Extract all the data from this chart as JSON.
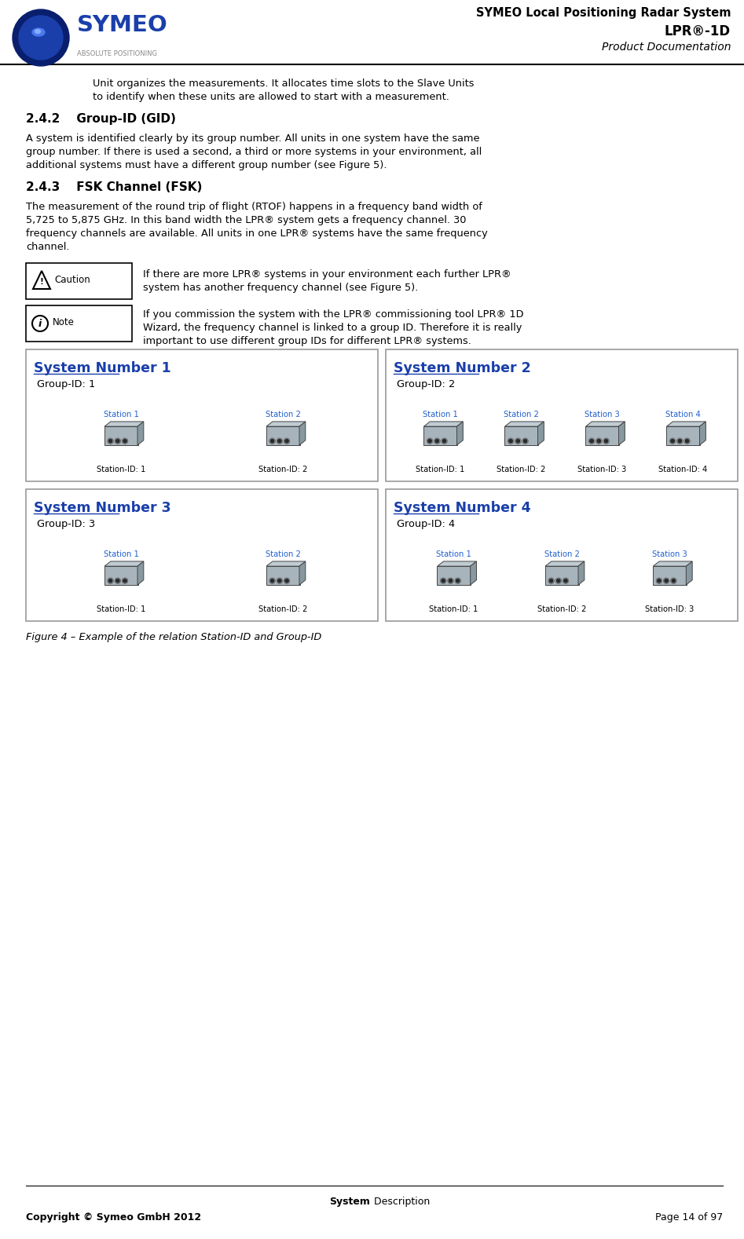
{
  "header_title_line1": "SYMEO Local Positioning Radar System",
  "header_title_line2": "LPR®-1D",
  "header_title_line3": "Product Documentation",
  "body_text_intro": "Unit organizes the measurements. It allocates time slots to the Slave Units\nto identify when these units are allowed to start with a measurement.",
  "section_242_title": "2.4.2    Group-ID (GID)",
  "section_242_text": "A system is identified clearly by its group number. All units in one system have the same\ngroup number. If there is used a second, a third or more systems in your environment, all\nadditional systems must have a different group number (see Figure 5).",
  "section_243_title": "2.4.3    FSK Channel (FSK)",
  "section_243_text": "The measurement of the round trip of flight (RTOF) happens in a frequency band width of\n5,725 to 5,875 GHz. In this band width the LPR® system gets a frequency channel. 30\nfrequency channels are available. All units in one LPR® systems have the same frequency\nchannel.",
  "caution_text": "If there are more LPR® systems in your environment each further LPR®\nsystem has another frequency channel (see Figure 5).",
  "note_text": "If you commission the system with the LPR® commissioning tool LPR® 1D\nWizard, the frequency channel is linked to a group ID. Therefore it is really\nimportant to use different group IDs for different LPR® systems.",
  "figure_caption": "Figure 4 – Example of the relation Station-ID and Group-ID",
  "footer_center_bold": "System",
  "footer_center_normal": " Description",
  "footer_left": "Copyright © Symeo GmbH 2012",
  "footer_right": "Page 14 of 97",
  "systems": [
    {
      "title": "System Number 1",
      "group_id": "Group-ID: 1",
      "stations": [
        "Station 1",
        "Station 2"
      ],
      "station_ids": [
        "Station-ID: 1",
        "Station-ID: 2"
      ]
    },
    {
      "title": "System Number 2",
      "group_id": "Group-ID: 2",
      "stations": [
        "Station 1",
        "Station 2",
        "Station 3",
        "Station 4"
      ],
      "station_ids": [
        "Station-ID: 1",
        "Station-ID: 2",
        "Station-ID: 3",
        "Station-ID: 4"
      ]
    },
    {
      "title": "System Number 3",
      "group_id": "Group-ID: 3",
      "stations": [
        "Station 1",
        "Station 2"
      ],
      "station_ids": [
        "Station-ID: 1",
        "Station-ID: 2"
      ]
    },
    {
      "title": "System Number 4",
      "group_id": "Group-ID: 4",
      "stations": [
        "Station 1",
        "Station 2",
        "Station 3"
      ],
      "station_ids": [
        "Station-ID: 1",
        "Station-ID: 2",
        "Station-ID: 3"
      ]
    }
  ],
  "colors": {
    "background": "#ffffff",
    "text_main": "#000000",
    "system_title": "#1a3faa",
    "station_label": "#2060cc",
    "box_border": "#999999",
    "symeo_blue_dark": "#0a1e6e",
    "symeo_blue_mid": "#1a3faa",
    "symeo_blue_light": "#4a7aee",
    "symeo_blue_bright": "#8aacff",
    "symeo_gray": "#888888"
  }
}
